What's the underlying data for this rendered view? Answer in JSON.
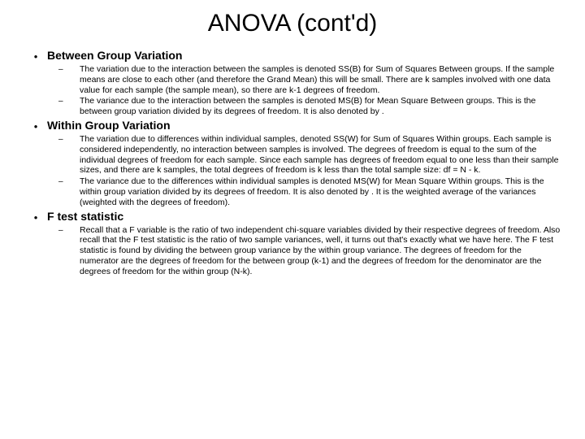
{
  "title": "ANOVA (cont'd)",
  "sections": [
    {
      "heading": "Between Group Variation",
      "items": [
        "The variation due to the interaction between the samples is denoted SS(B) for Sum of Squares Between groups. If the sample means are close to each other (and therefore the Grand Mean) this will be small. There are k samples involved with one data value for each sample (the sample mean), so there are k-1 degrees of freedom.",
        "The variance due to the interaction between the samples is denoted MS(B) for Mean Square Between groups. This is the between group variation divided by its degrees of freedom. It is also denoted by  ."
      ]
    },
    {
      "heading": "Within Group Variation",
      "items": [
        "The variation due to differences within individual samples, denoted SS(W) for Sum of Squares Within groups. Each sample is considered independently, no interaction between samples is involved. The degrees of freedom is equal to the sum of the individual degrees of freedom for each sample. Since each sample has degrees of freedom equal to one less than their sample sizes, and there are k samples, the total degrees of freedom is k less than the total sample size: df = N - k.",
        "The variance due to the differences within individual samples is denoted MS(W) for Mean Square Within groups. This is the within group variation divided by its degrees of freedom. It is also denoted by  . It is the weighted average of the variances (weighted with the degrees of freedom)."
      ]
    },
    {
      "heading": "F test statistic",
      "items": [
        "Recall that a F variable is the ratio of two independent chi-square variables divided by their respective degrees of freedom. Also recall that the F test statistic is the ratio of two sample variances, well, it turns out that's exactly what we have here. The F test statistic is found by dividing the between group variance by the within group variance. The degrees of freedom for the numerator are the degrees of freedom for the between group (k-1) and the degrees of freedom for the denominator are the degrees of freedom for the within group (N-k)."
      ]
    }
  ]
}
